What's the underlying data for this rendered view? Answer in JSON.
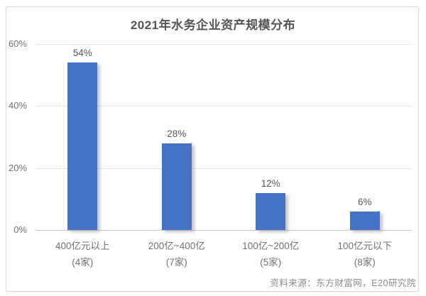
{
  "page": {
    "title": "2021年水务企业资产规模分布",
    "source": "资料来源：东方财富网，E20研究院"
  },
  "colors": {
    "bar": "#4472C4",
    "gridline": "#E4E4E4",
    "axis_line": "#C9C9C9",
    "title_text": "#555555",
    "tick_text": "#737373",
    "data_label_text": "#595959",
    "source_text": "#8C8C8C",
    "frame_border": "#D9D9D9",
    "background": "#FFFFFF"
  },
  "chart_data": {
    "type": "bar",
    "title": "2021年水务企业资产规模分布",
    "categories": [
      "400亿元以上",
      "200亿~400亿",
      "100亿~200亿",
      "100亿元以下"
    ],
    "category_sublabels": [
      "(4家)",
      "(7家)",
      "(5家)",
      "(8家)"
    ],
    "values": [
      54,
      28,
      12,
      6
    ],
    "data_labels": [
      "54%",
      "28%",
      "12%",
      "6%"
    ],
    "unit": "%",
    "ylim": [
      0,
      60
    ],
    "yticks": [
      0,
      20,
      40,
      60
    ],
    "ytick_labels": [
      "0%",
      "20%",
      "40%",
      "60%"
    ],
    "grid": true,
    "legend": false,
    "bar_color": "#4472C4",
    "source": "资料来源：东方财富网，E20研究院"
  }
}
